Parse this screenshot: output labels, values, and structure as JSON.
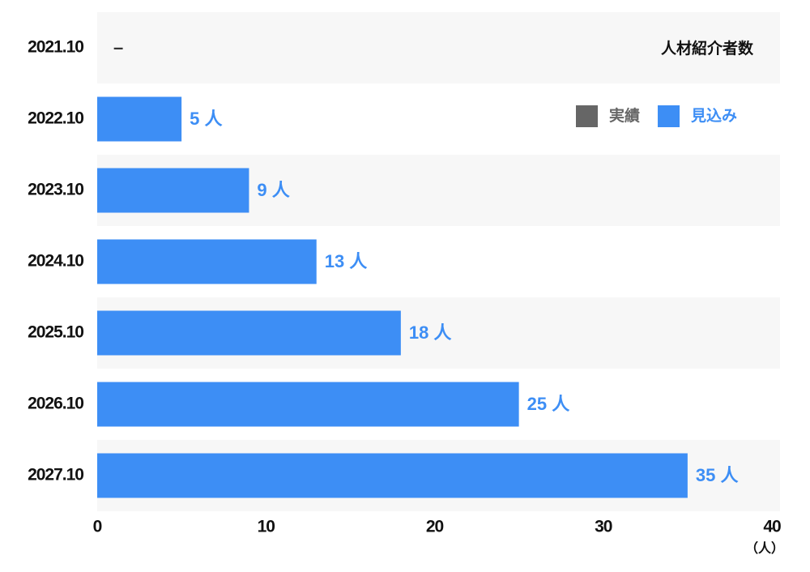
{
  "chart_data": {
    "type": "bar",
    "orientation": "horizontal",
    "title": "人材紹介者数",
    "x_unit_label": "（人）",
    "categories": [
      "2021.10",
      "2022.10",
      "2023.10",
      "2024.10",
      "2025.10",
      "2026.10",
      "2027.10"
    ],
    "series": [
      {
        "name": "実績",
        "color": "#666666",
        "values": [
          null,
          null,
          null,
          null,
          null,
          null,
          null
        ]
      },
      {
        "name": "見込み",
        "color": "#3d8ef5",
        "values": [
          null,
          5,
          9,
          13,
          18,
          25,
          35
        ],
        "value_labels": [
          "–",
          "5 人",
          "9 人",
          "13 人",
          "18 人",
          "25 人",
          "35 人"
        ]
      }
    ],
    "xlim": [
      0,
      40
    ],
    "xticks": [
      0,
      10,
      20,
      30,
      40
    ]
  }
}
